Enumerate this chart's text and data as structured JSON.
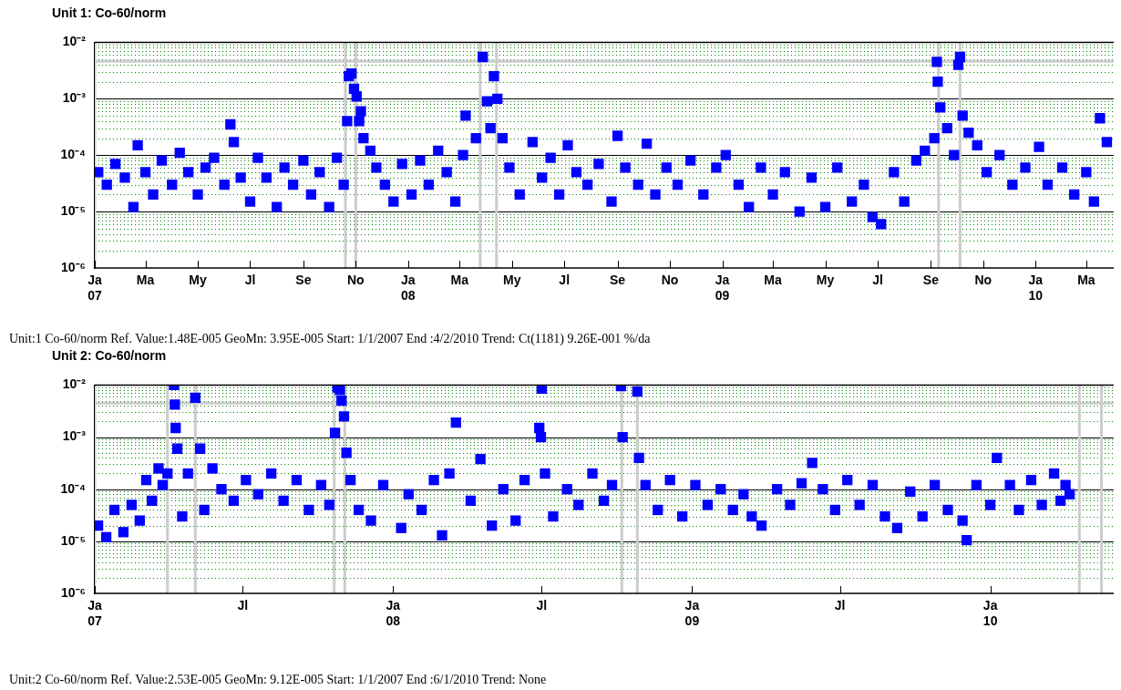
{
  "chart_data": [
    {
      "type": "scatter",
      "title": "Unit 1: Co-60/norm",
      "annotations": [
        "Unit:1 Co-60/norm Ref. Value:1.48E-005 GeoMn: 3.95E-005 Start: 1/1/2007 End :4/2/2010 Trend: Ct(1181) 9.26E-001 %/da"
      ],
      "log": "y",
      "grid": "y",
      "marker": "square",
      "xlim": [
        "2007-01-01",
        "2010-04-02"
      ],
      "xticks": [
        {
          "value": "2007-01-01",
          "label": "Ja 07"
        },
        {
          "value": "2007-03-01",
          "label": "Ma"
        },
        {
          "value": "2007-05-01",
          "label": "My"
        },
        {
          "value": "2007-07-01",
          "label": "Jl"
        },
        {
          "value": "2007-09-01",
          "label": "Se"
        },
        {
          "value": "2007-11-01",
          "label": "No"
        },
        {
          "value": "2008-01-01",
          "label": "Ja 08"
        },
        {
          "value": "2008-03-01",
          "label": "Ma"
        },
        {
          "value": "2008-05-01",
          "label": "My"
        },
        {
          "value": "2008-07-01",
          "label": "Jl"
        },
        {
          "value": "2008-09-01",
          "label": "Se"
        },
        {
          "value": "2008-11-01",
          "label": "No"
        },
        {
          "value": "2009-01-01",
          "label": "Ja 09"
        },
        {
          "value": "2009-03-01",
          "label": "Ma"
        },
        {
          "value": "2009-05-01",
          "label": "My"
        },
        {
          "value": "2009-07-01",
          "label": "Jl"
        },
        {
          "value": "2009-09-01",
          "label": "Se"
        },
        {
          "value": "2009-11-01",
          "label": "No"
        },
        {
          "value": "2010-01-01",
          "label": "Ja 10"
        },
        {
          "value": "2010-03-01",
          "label": "Ma"
        }
      ],
      "ylim": [
        1e-06,
        0.01
      ],
      "yticks": [
        {
          "value": 1e-06,
          "label": "10⁻⁶"
        },
        {
          "value": 2e-06,
          "label": null
        },
        {
          "value": 3e-06,
          "label": null
        },
        {
          "value": 4e-06,
          "label": null
        },
        {
          "value": 5e-06,
          "label": null
        },
        {
          "value": 6e-06,
          "label": null
        },
        {
          "value": 7e-06,
          "label": null
        },
        {
          "value": 8e-06,
          "label": null
        },
        {
          "value": 9e-06,
          "label": null
        },
        {
          "value": 1e-05,
          "label": "10⁻⁵"
        },
        {
          "value": 2e-05,
          "label": null
        },
        {
          "value": 3e-05,
          "label": null
        },
        {
          "value": 4e-05,
          "label": null
        },
        {
          "value": 5e-05,
          "label": null
        },
        {
          "value": 6e-05,
          "label": null
        },
        {
          "value": 7e-05,
          "label": null
        },
        {
          "value": 8e-05,
          "label": null
        },
        {
          "value": 9e-05,
          "label": null
        },
        {
          "value": 0.0001,
          "label": "10⁻⁴"
        },
        {
          "value": 0.0002,
          "label": null
        },
        {
          "value": 0.0003,
          "label": null
        },
        {
          "value": 0.0004,
          "label": null
        },
        {
          "value": 0.0005,
          "label": null
        },
        {
          "value": 0.0006,
          "label": null
        },
        {
          "value": 0.0007,
          "label": null
        },
        {
          "value": 0.0008,
          "label": null
        },
        {
          "value": 0.0009,
          "label": null
        },
        {
          "value": 0.001,
          "label": "10⁻³"
        },
        {
          "value": 0.002,
          "label": null
        },
        {
          "value": 0.003,
          "label": null
        },
        {
          "value": 0.004,
          "label": null
        },
        {
          "value": 0.005,
          "label": null
        },
        {
          "value": 0.006,
          "label": null
        },
        {
          "value": 0.007,
          "label": null
        },
        {
          "value": 0.008,
          "label": null
        },
        {
          "value": 0.009,
          "label": null
        },
        {
          "value": 0.01,
          "label": "10⁻²"
        }
      ],
      "ref_lines": [
        {
          "axis": "y",
          "value": 0.0046,
          "color": "#cccccc"
        },
        {
          "axis": "x",
          "value": "2007-01-01",
          "color": "#cccccc"
        },
        {
          "axis": "x",
          "value": "2007-10-20",
          "color": "#cccccc"
        },
        {
          "axis": "x",
          "value": "2007-11-01",
          "color": "#cccccc"
        },
        {
          "axis": "x",
          "value": "2008-03-25",
          "color": "#cccccc"
        },
        {
          "axis": "x",
          "value": "2008-04-13",
          "color": "#cccccc"
        },
        {
          "axis": "x",
          "value": "2009-09-10",
          "color": "#cccccc"
        },
        {
          "axis": "x",
          "value": "2009-10-05",
          "color": "#cccccc"
        }
      ],
      "series": [
        {
          "color": "#0000ff",
          "x": [
            "2007-01-05",
            "2007-01-15",
            "2007-01-25",
            "2007-02-05",
            "2007-02-15",
            "2007-02-20",
            "2007-03-01",
            "2007-03-10",
            "2007-03-20",
            "2007-04-01",
            "2007-04-10",
            "2007-04-20",
            "2007-05-01",
            "2007-05-10",
            "2007-05-20",
            "2007-06-01",
            "2007-06-08",
            "2007-06-12",
            "2007-06-20",
            "2007-07-01",
            "2007-07-10",
            "2007-07-20",
            "2007-08-01",
            "2007-08-10",
            "2007-08-20",
            "2007-09-01",
            "2007-09-10",
            "2007-09-20",
            "2007-10-01",
            "2007-10-10",
            "2007-10-18",
            "2007-10-22",
            "2007-10-24",
            "2007-10-27",
            "2007-10-30",
            "2007-11-02",
            "2007-11-05",
            "2007-11-07",
            "2007-11-10",
            "2007-11-18",
            "2007-11-25",
            "2007-12-05",
            "2007-12-15",
            "2007-12-25",
            "2008-01-05",
            "2008-01-15",
            "2008-01-25",
            "2008-02-05",
            "2008-02-15",
            "2008-02-25",
            "2008-03-05",
            "2008-03-08",
            "2008-03-20",
            "2008-03-28",
            "2008-04-02",
            "2008-04-06",
            "2008-04-10",
            "2008-04-14",
            "2008-04-20",
            "2008-04-28",
            "2008-05-10",
            "2008-05-25",
            "2008-06-05",
            "2008-06-15",
            "2008-06-25",
            "2008-07-05",
            "2008-07-15",
            "2008-07-28",
            "2008-08-10",
            "2008-08-25",
            "2008-09-01",
            "2008-09-10",
            "2008-09-25",
            "2008-10-05",
            "2008-10-15",
            "2008-10-28",
            "2008-11-10",
            "2008-11-25",
            "2008-12-10",
            "2008-12-25",
            "2009-01-05",
            "2009-01-20",
            "2009-02-01",
            "2009-02-15",
            "2009-03-01",
            "2009-03-15",
            "2009-04-01",
            "2009-04-15",
            "2009-05-01",
            "2009-05-15",
            "2009-06-01",
            "2009-06-15",
            "2009-06-25",
            "2009-07-05",
            "2009-07-20",
            "2009-08-01",
            "2009-08-15",
            "2009-08-25",
            "2009-09-05",
            "2009-09-08",
            "2009-09-09",
            "2009-09-12",
            "2009-09-20",
            "2009-09-28",
            "2009-10-03",
            "2009-10-05",
            "2009-10-08",
            "2009-10-15",
            "2009-10-25",
            "2009-11-05",
            "2009-11-20",
            "2009-12-05",
            "2009-12-20",
            "2010-01-05",
            "2010-01-15",
            "2010-02-01",
            "2010-02-15",
            "2010-03-01",
            "2010-03-10",
            "2010-03-17",
            "2010-03-25"
          ],
          "values": [
            5e-05,
            3e-05,
            7e-05,
            4e-05,
            1.2e-05,
            0.00015,
            5e-05,
            2e-05,
            8e-05,
            3e-05,
            0.00011,
            5e-05,
            2e-05,
            6e-05,
            9e-05,
            3e-05,
            0.00035,
            0.00017,
            4e-05,
            1.5e-05,
            9e-05,
            4e-05,
            1.2e-05,
            6e-05,
            3e-05,
            8e-05,
            2e-05,
            5e-05,
            1.2e-05,
            9e-05,
            3e-05,
            0.0004,
            0.0025,
            0.0028,
            0.0015,
            0.0011,
            0.0004,
            0.0006,
            0.0002,
            0.00012,
            6e-05,
            3e-05,
            1.5e-05,
            7e-05,
            2e-05,
            8e-05,
            3e-05,
            0.00012,
            5e-05,
            1.5e-05,
            0.0001,
            0.0005,
            0.0002,
            0.0055,
            0.0009,
            0.0003,
            0.0025,
            0.001,
            0.0002,
            6e-05,
            2e-05,
            0.00017,
            4e-05,
            9e-05,
            2e-05,
            0.00015,
            5e-05,
            3e-05,
            7e-05,
            1.5e-05,
            0.00022,
            6e-05,
            3e-05,
            0.00016,
            2e-05,
            6e-05,
            3e-05,
            8e-05,
            2e-05,
            6e-05,
            0.0001,
            3e-05,
            1.2e-05,
            6e-05,
            2e-05,
            5e-05,
            1e-05,
            4e-05,
            1.2e-05,
            6e-05,
            1.5e-05,
            3e-05,
            8e-06,
            6e-06,
            5e-05,
            1.5e-05,
            8e-05,
            0.00012,
            0.0002,
            0.0045,
            0.002,
            0.0007,
            0.0003,
            0.0001,
            0.004,
            0.0055,
            0.0005,
            0.00025,
            0.00015,
            5e-05,
            0.0001,
            3e-05,
            6e-05,
            0.00014,
            3e-05,
            6e-05,
            2e-05,
            5e-05,
            1.5e-05,
            0.00045,
            0.00017
          ]
        }
      ]
    },
    {
      "type": "scatter",
      "title": "Unit 2: Co-60/norm",
      "annotations": [
        "Unit:2 Co-60/norm Ref. Value:2.53E-005 GeoMn: 9.12E-005 Start: 1/1/2007 End :6/1/2010 Trend: None"
      ],
      "log": "y",
      "grid": "y",
      "marker": "square",
      "xlim": [
        "2007-01-01",
        "2010-06-01"
      ],
      "xticks": [
        {
          "value": "2007-01-01",
          "label": "Ja 07"
        },
        {
          "value": "2007-07-01",
          "label": "Jl"
        },
        {
          "value": "2008-01-01",
          "label": "Ja 08"
        },
        {
          "value": "2008-07-01",
          "label": "Jl"
        },
        {
          "value": "2009-01-01",
          "label": "Ja 09"
        },
        {
          "value": "2009-07-01",
          "label": "Jl"
        },
        {
          "value": "2010-01-01",
          "label": "Ja 10"
        }
      ],
      "ylim": [
        1e-06,
        0.01
      ],
      "yticks": [
        {
          "value": 1e-06,
          "label": "10⁻⁶"
        },
        {
          "value": 2e-06,
          "label": null
        },
        {
          "value": 3e-06,
          "label": null
        },
        {
          "value": 4e-06,
          "label": null
        },
        {
          "value": 5e-06,
          "label": null
        },
        {
          "value": 6e-06,
          "label": null
        },
        {
          "value": 7e-06,
          "label": null
        },
        {
          "value": 8e-06,
          "label": null
        },
        {
          "value": 9e-06,
          "label": null
        },
        {
          "value": 1e-05,
          "label": "10⁻⁵"
        },
        {
          "value": 2e-05,
          "label": null
        },
        {
          "value": 3e-05,
          "label": null
        },
        {
          "value": 4e-05,
          "label": null
        },
        {
          "value": 5e-05,
          "label": null
        },
        {
          "value": 6e-05,
          "label": null
        },
        {
          "value": 7e-05,
          "label": null
        },
        {
          "value": 8e-05,
          "label": null
        },
        {
          "value": 9e-05,
          "label": null
        },
        {
          "value": 0.0001,
          "label": "10⁻⁴"
        },
        {
          "value": 0.0002,
          "label": null
        },
        {
          "value": 0.0003,
          "label": null
        },
        {
          "value": 0.0004,
          "label": null
        },
        {
          "value": 0.0005,
          "label": null
        },
        {
          "value": 0.0006,
          "label": null
        },
        {
          "value": 0.0007,
          "label": null
        },
        {
          "value": 0.0008,
          "label": null
        },
        {
          "value": 0.0009,
          "label": null
        },
        {
          "value": 0.001,
          "label": "10⁻³"
        },
        {
          "value": 0.002,
          "label": null
        },
        {
          "value": 0.003,
          "label": null
        },
        {
          "value": 0.004,
          "label": null
        },
        {
          "value": 0.005,
          "label": null
        },
        {
          "value": 0.006,
          "label": null
        },
        {
          "value": 0.007,
          "label": null
        },
        {
          "value": 0.008,
          "label": null
        },
        {
          "value": 0.009,
          "label": null
        },
        {
          "value": 0.01,
          "label": "10⁻²"
        }
      ],
      "ref_lines": [
        {
          "axis": "y",
          "value": 0.0045,
          "color": "#cccccc"
        },
        {
          "axis": "x",
          "value": "2007-01-01",
          "color": "#cccccc"
        },
        {
          "axis": "x",
          "value": "2007-03-31",
          "color": "#cccccc"
        },
        {
          "axis": "x",
          "value": "2007-05-04",
          "color": "#cccccc"
        },
        {
          "axis": "x",
          "value": "2007-10-21",
          "color": "#cccccc"
        },
        {
          "axis": "x",
          "value": "2007-11-03",
          "color": "#cccccc"
        },
        {
          "axis": "x",
          "value": "2008-10-07",
          "color": "#cccccc"
        },
        {
          "axis": "x",
          "value": "2008-10-26",
          "color": "#cccccc"
        },
        {
          "axis": "x",
          "value": "2010-04-20",
          "color": "#cccccc"
        },
        {
          "axis": "x",
          "value": "2010-05-17",
          "color": "#cccccc"
        }
      ],
      "series": [
        {
          "color": "#0000ff",
          "x": [
            "2007-01-05",
            "2007-01-15",
            "2007-01-25",
            "2007-02-05",
            "2007-02-15",
            "2007-02-25",
            "2007-03-05",
            "2007-03-12",
            "2007-03-20",
            "2007-03-25",
            "2007-03-31",
            "2007-04-08",
            "2007-04-09",
            "2007-04-10",
            "2007-04-12",
            "2007-04-18",
            "2007-04-25",
            "2007-05-04",
            "2007-05-10",
            "2007-05-15",
            "2007-05-25",
            "2007-06-05",
            "2007-06-20",
            "2007-07-05",
            "2007-07-20",
            "2007-08-05",
            "2007-08-20",
            "2007-09-05",
            "2007-09-20",
            "2007-10-05",
            "2007-10-15",
            "2007-10-22",
            "2007-10-25",
            "2007-10-28",
            "2007-10-30",
            "2007-11-02",
            "2007-11-05",
            "2007-11-10",
            "2007-11-20",
            "2007-12-05",
            "2007-12-20",
            "2008-01-11",
            "2008-01-20",
            "2008-02-05",
            "2008-02-20",
            "2008-03-01",
            "2008-03-10",
            "2008-03-18",
            "2008-04-05",
            "2008-04-17",
            "2008-05-01",
            "2008-05-15",
            "2008-05-30",
            "2008-06-10",
            "2008-06-28",
            "2008-06-30",
            "2008-07-01",
            "2008-07-05",
            "2008-07-15",
            "2008-08-01",
            "2008-08-15",
            "2008-09-01",
            "2008-09-15",
            "2008-09-25",
            "2008-10-06",
            "2008-10-08",
            "2008-10-26",
            "2008-10-28",
            "2008-11-05",
            "2008-11-20",
            "2008-12-05",
            "2008-12-20",
            "2009-01-05",
            "2009-01-20",
            "2009-02-05",
            "2009-02-20",
            "2009-03-05",
            "2009-03-15",
            "2009-03-27",
            "2009-04-15",
            "2009-05-01",
            "2009-05-15",
            "2009-05-28",
            "2009-06-10",
            "2009-06-25",
            "2009-07-10",
            "2009-07-25",
            "2009-08-10",
            "2009-08-25",
            "2009-09-09",
            "2009-09-25",
            "2009-10-10",
            "2009-10-25",
            "2009-11-10",
            "2009-11-28",
            "2009-12-03",
            "2009-12-15",
            "2010-01-01",
            "2010-01-09",
            "2010-01-25",
            "2010-02-05",
            "2010-02-20",
            "2010-03-05",
            "2010-03-20",
            "2010-03-28",
            "2010-04-03",
            "2010-04-08"
          ],
          "values": [
            2e-05,
            1.2e-05,
            4e-05,
            1.5e-05,
            5e-05,
            2.5e-05,
            0.00015,
            6e-05,
            0.00025,
            0.00012,
            0.0002,
            0.01,
            0.0042,
            0.0015,
            0.0006,
            3e-05,
            0.0002,
            0.0057,
            0.0006,
            4e-05,
            0.00025,
            0.0001,
            6e-05,
            0.00015,
            8e-05,
            0.0002,
            6e-05,
            0.00015,
            4e-05,
            0.00012,
            5e-05,
            0.0012,
            0.009,
            0.008,
            0.005,
            0.0025,
            0.0005,
            0.00015,
            4e-05,
            2.5e-05,
            0.00012,
            1.8e-05,
            8e-05,
            4e-05,
            0.00015,
            1.3e-05,
            0.0002,
            0.0019,
            6e-05,
            0.00038,
            2e-05,
            0.0001,
            2.5e-05,
            0.00015,
            0.0015,
            0.001,
            0.0085,
            0.0002,
            3e-05,
            0.0001,
            5e-05,
            0.0002,
            6e-05,
            0.00012,
            0.0095,
            0.001,
            0.0075,
            0.0004,
            0.00012,
            4e-05,
            0.00015,
            3e-05,
            0.00012,
            5e-05,
            0.0001,
            4e-05,
            8e-05,
            3e-05,
            2e-05,
            0.0001,
            5e-05,
            0.00013,
            0.00032,
            0.0001,
            4e-05,
            0.00015,
            5e-05,
            0.00012,
            3e-05,
            1.8e-05,
            9e-05,
            3e-05,
            0.00012,
            4e-05,
            2.5e-05,
            1.05e-05,
            0.00012,
            5e-05,
            0.0004,
            0.00012,
            4e-05,
            0.00015,
            5e-05,
            0.0002,
            6e-05,
            0.00012,
            8e-05
          ]
        }
      ]
    }
  ]
}
